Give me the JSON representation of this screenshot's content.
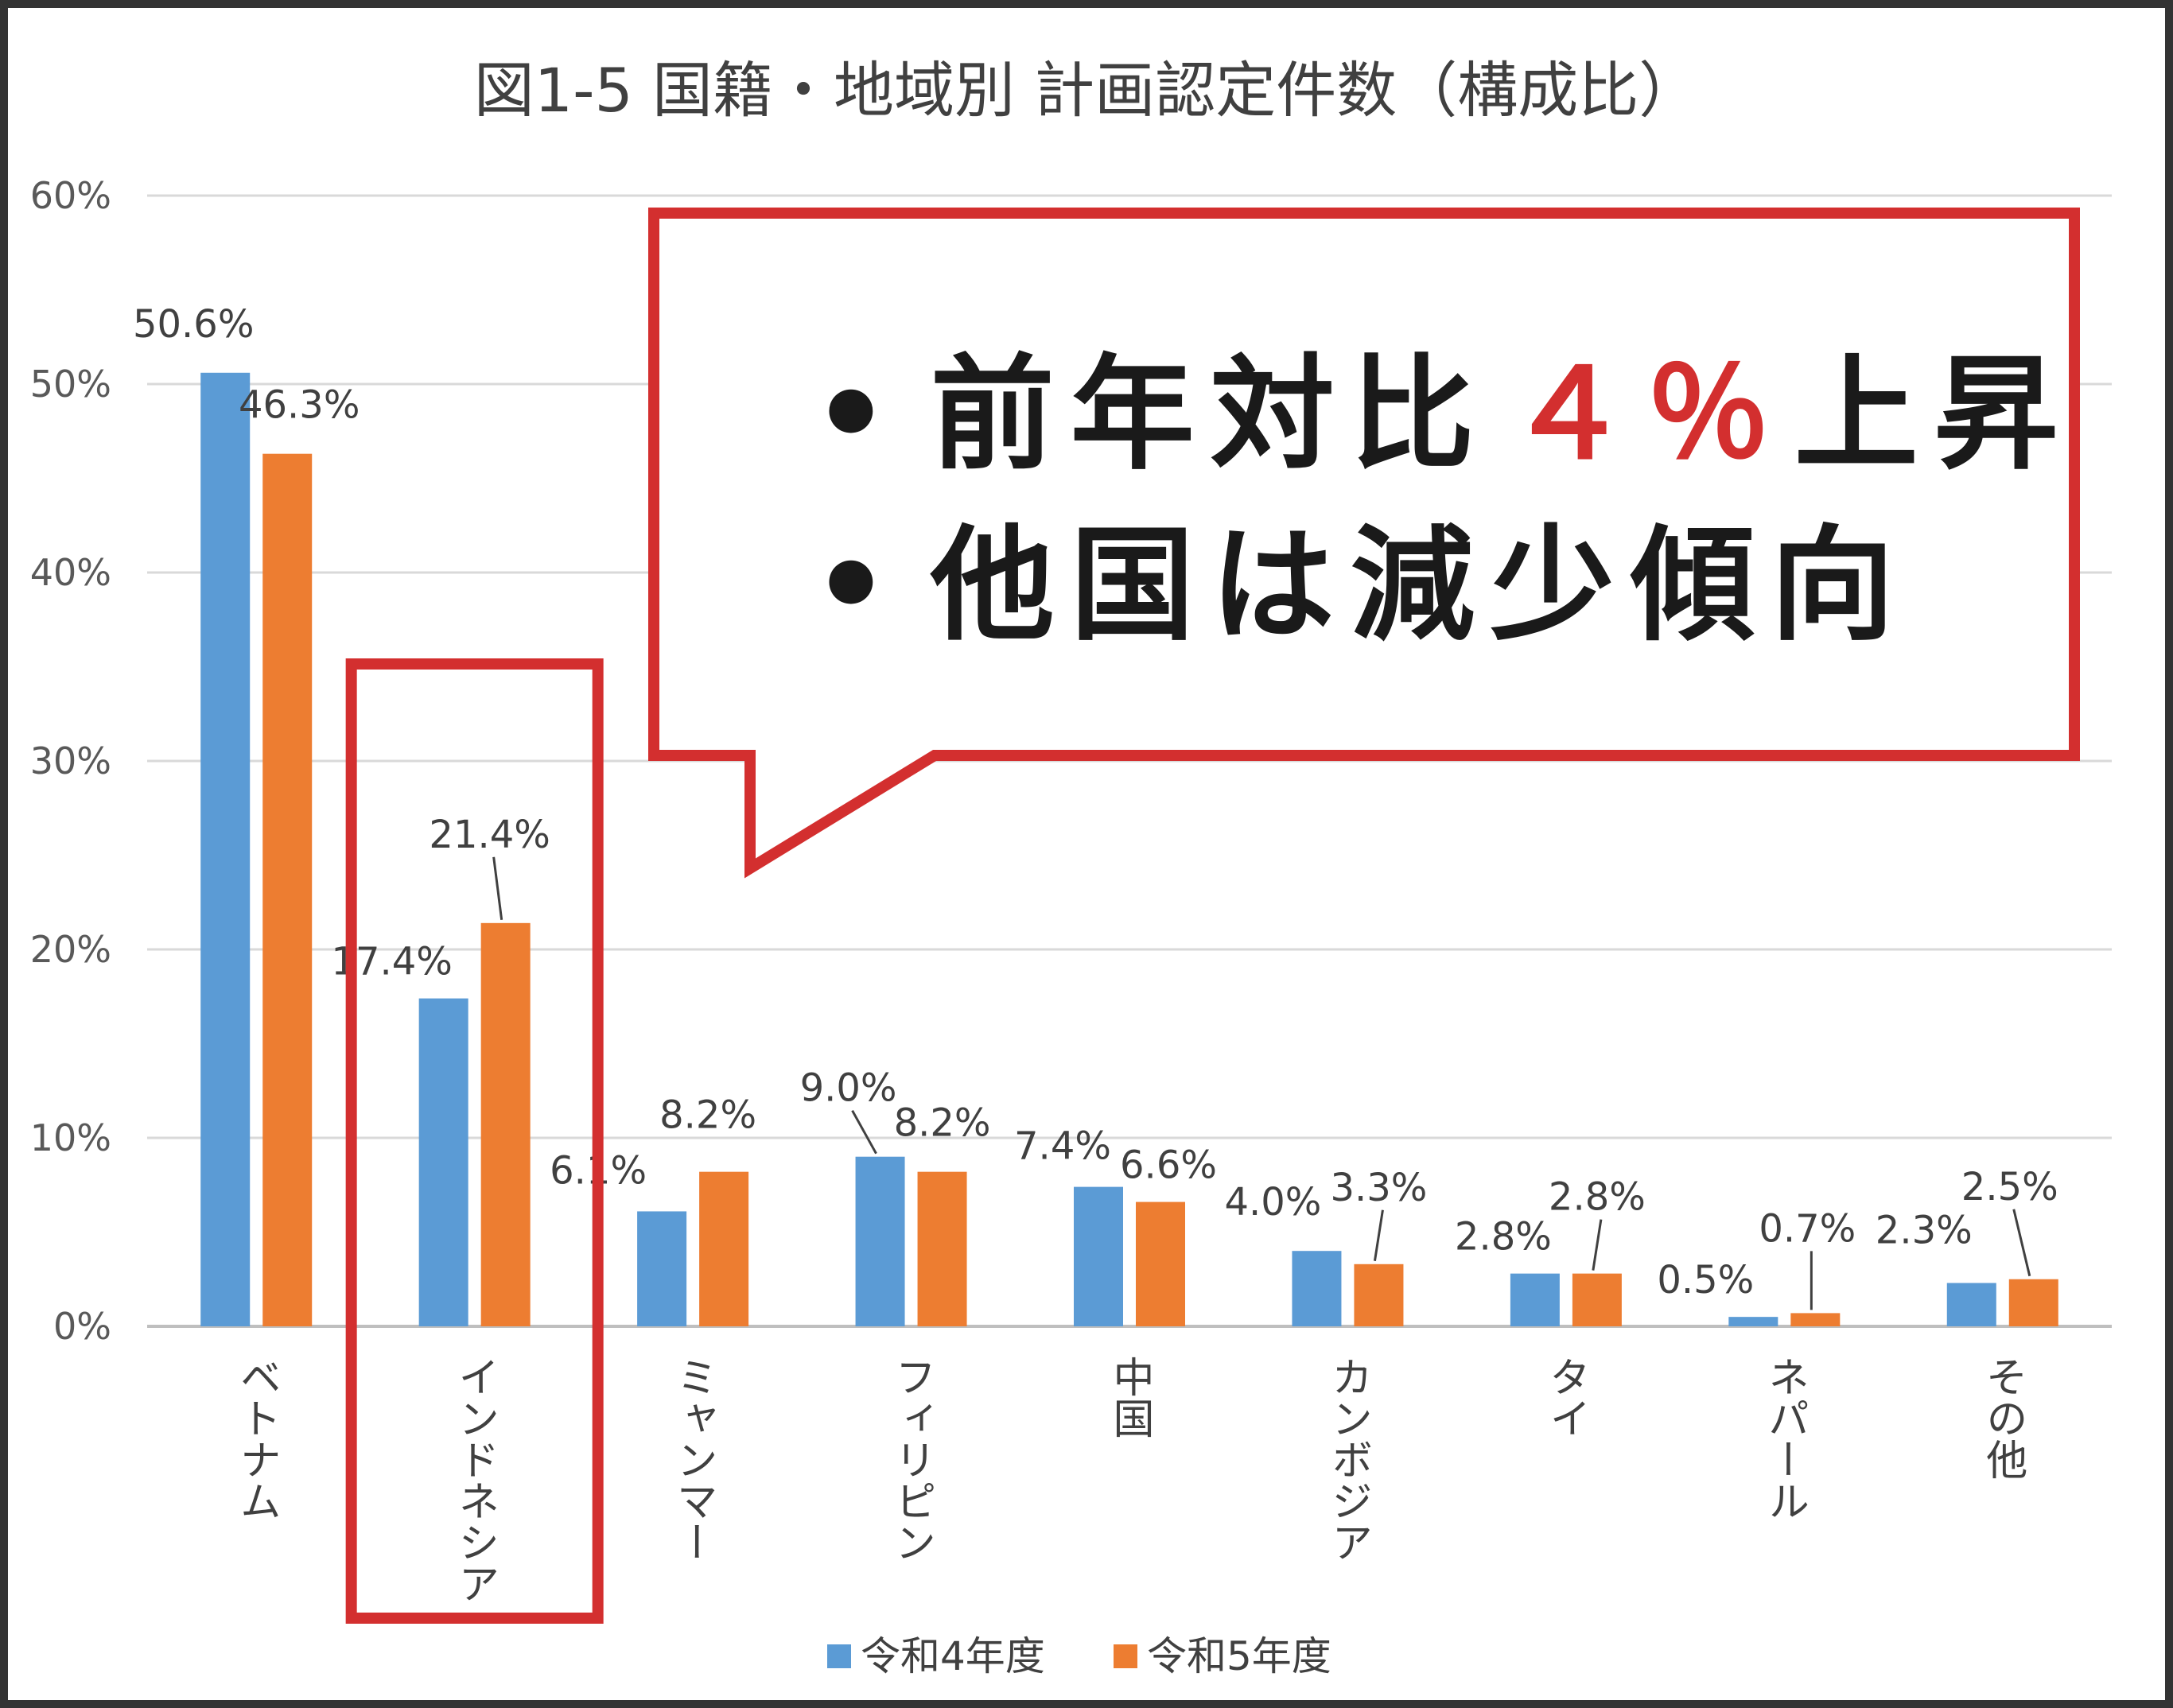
{
  "chart_data": {
    "type": "bar",
    "title": "図1-5 国籍・地域別 計画認定件数（構成比）",
    "xlabel": "",
    "ylabel": "",
    "ylim": [
      0,
      60
    ],
    "ytick_labels": [
      "0%",
      "10%",
      "20%",
      "30%",
      "40%",
      "50%",
      "60%"
    ],
    "grid": true,
    "legend_position": "bottom",
    "categories": [
      "ベトナム",
      "インドネシア",
      "ミャンマー",
      "フィリピン",
      "中国",
      "カンボジア",
      "タイ",
      "ネパール",
      "その他"
    ],
    "series": [
      {
        "name": "令和4年度",
        "color": "#5B9BD5",
        "values": [
          50.6,
          17.4,
          6.1,
          9.0,
          7.4,
          4.0,
          2.8,
          0.5,
          2.3
        ],
        "labels": [
          "50.6%",
          "17.4%",
          "6.1%",
          "9.0%",
          "7.4%",
          "4.0%",
          "2.8%",
          "0.5%",
          "2.3%"
        ]
      },
      {
        "name": "令和5年度",
        "color": "#ED7D31",
        "values": [
          46.3,
          21.4,
          8.2,
          8.2,
          6.6,
          3.3,
          2.8,
          0.7,
          2.5
        ],
        "labels": [
          "46.3%",
          "21.4%",
          "8.2%",
          "8.2%",
          "6.6%",
          "3.3%",
          "2.8%",
          "0.7%",
          "2.5%"
        ]
      }
    ]
  },
  "callout": {
    "bullet": "•",
    "line1": "前年対比",
    "line1_highlight": "４％",
    "line1_end": "上昇",
    "line2": "他国は減少傾向",
    "border_color": "#D32F2F",
    "highlight_color": "#D32F2F"
  },
  "highlight_box": {
    "category": "インドネシア",
    "color": "#D32F2F"
  }
}
